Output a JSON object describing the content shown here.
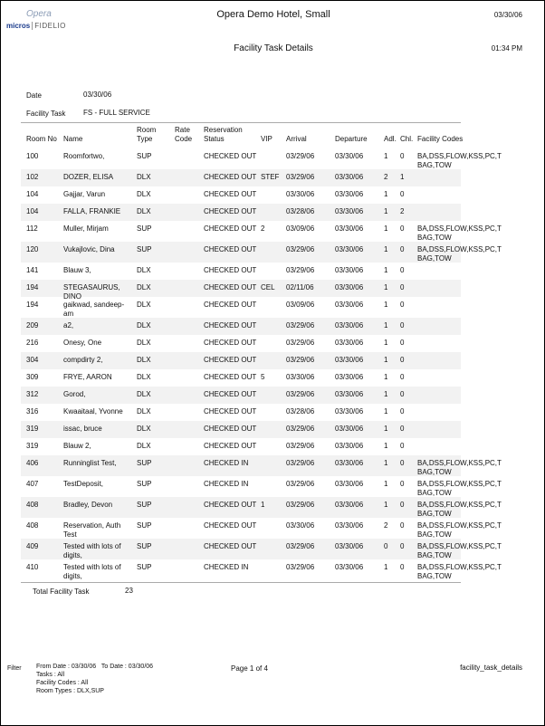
{
  "header": {
    "logo_top": "Opera",
    "logo_bottom_left": "micros",
    "logo_bottom_right": "FIDELIO",
    "hotel": "Opera Demo Hotel, Small",
    "date": "03/30/06",
    "title": "Facility Task Details",
    "time": "01:34 PM"
  },
  "params": {
    "date_label": "Date",
    "date_value": "03/30/06",
    "task_label": "Facility Task",
    "task_value": "FS - FULL SERVICE"
  },
  "columns": {
    "room_no": "Room No",
    "name": "Name",
    "room_type": "Room Type",
    "rate_code": "Rate Code",
    "res_status": "Reservation Status",
    "vip": "VIP",
    "arrival": "Arrival",
    "departure": "Departure",
    "adl": "Adl.",
    "chl": "Chl.",
    "codes": "Facility Codes"
  },
  "rows": [
    {
      "room": "100",
      "name": "Roomfortwo,",
      "type": "SUP",
      "rate": "",
      "status": "CHECKED OUT",
      "vip": "",
      "arr": "03/29/06",
      "dep": "03/30/06",
      "adl": "1",
      "chl": "0",
      "codes": "BA,DSS,FLOW,KSS,PC,T BAG,TOW"
    },
    {
      "room": "102",
      "name": "DOZER, ELISA",
      "type": "DLX",
      "rate": "",
      "status": "CHECKED OUT",
      "vip": "STEF",
      "arr": "03/29/06",
      "dep": "03/30/06",
      "adl": "2",
      "chl": "1",
      "codes": ""
    },
    {
      "room": "104",
      "name": "Gajjar, Varun",
      "type": "DLX",
      "rate": "",
      "status": "CHECKED OUT",
      "vip": "",
      "arr": "03/30/06",
      "dep": "03/30/06",
      "adl": "1",
      "chl": "0",
      "codes": ""
    },
    {
      "room": "104",
      "name": "FALLA, FRANKIE",
      "type": "DLX",
      "rate": "",
      "status": "CHECKED OUT",
      "vip": "",
      "arr": "03/28/06",
      "dep": "03/30/06",
      "adl": "1",
      "chl": "2",
      "codes": ""
    },
    {
      "room": "112",
      "name": "Muller, Mirjam",
      "type": "SUP",
      "rate": "",
      "status": "CHECKED OUT",
      "vip": "2",
      "arr": "03/09/06",
      "dep": "03/30/06",
      "adl": "1",
      "chl": "0",
      "codes": "BA,DSS,FLOW,KSS,PC,T BAG,TOW"
    },
    {
      "room": "120",
      "name": "Vukajlovic, Dina",
      "type": "SUP",
      "rate": "",
      "status": "CHECKED OUT",
      "vip": "",
      "arr": "03/29/06",
      "dep": "03/30/06",
      "adl": "1",
      "chl": "0",
      "codes": "BA,DSS,FLOW,KSS,PC,T BAG,TOW"
    },
    {
      "room": "141",
      "name": "Blauw 3,",
      "type": "DLX",
      "rate": "",
      "status": "CHECKED OUT",
      "vip": "",
      "arr": "03/29/06",
      "dep": "03/30/06",
      "adl": "1",
      "chl": "0",
      "codes": ""
    },
    {
      "room": "194",
      "name": "STEGASAURUS, DINO",
      "type": "DLX",
      "rate": "",
      "status": "CHECKED OUT",
      "vip": "CEL",
      "arr": "02/11/06",
      "dep": "03/30/06",
      "adl": "1",
      "chl": "0",
      "codes": ""
    },
    {
      "room": "194",
      "name": "gaikwad, sandeep-am",
      "type": "DLX",
      "rate": "",
      "status": "CHECKED OUT",
      "vip": "",
      "arr": "03/09/06",
      "dep": "03/30/06",
      "adl": "1",
      "chl": "0",
      "codes": ""
    },
    {
      "room": "209",
      "name": "a2,",
      "type": "DLX",
      "rate": "",
      "status": "CHECKED OUT",
      "vip": "",
      "arr": "03/29/06",
      "dep": "03/30/06",
      "adl": "1",
      "chl": "0",
      "codes": ""
    },
    {
      "room": "216",
      "name": "Onesy, One",
      "type": "DLX",
      "rate": "",
      "status": "CHECKED OUT",
      "vip": "",
      "arr": "03/29/06",
      "dep": "03/30/06",
      "adl": "1",
      "chl": "0",
      "codes": ""
    },
    {
      "room": "304",
      "name": "compdirty 2,",
      "type": "DLX",
      "rate": "",
      "status": "CHECKED OUT",
      "vip": "",
      "arr": "03/29/06",
      "dep": "03/30/06",
      "adl": "1",
      "chl": "0",
      "codes": ""
    },
    {
      "room": "309",
      "name": "FRYE, AARON",
      "type": "DLX",
      "rate": "",
      "status": "CHECKED OUT",
      "vip": "5",
      "arr": "03/30/06",
      "dep": "03/30/06",
      "adl": "1",
      "chl": "0",
      "codes": ""
    },
    {
      "room": "312",
      "name": "Gorod,",
      "type": "DLX",
      "rate": "",
      "status": "CHECKED OUT",
      "vip": "",
      "arr": "03/29/06",
      "dep": "03/30/06",
      "adl": "1",
      "chl": "0",
      "codes": ""
    },
    {
      "room": "316",
      "name": "Kwaaitaal, Yvonne",
      "type": "DLX",
      "rate": "",
      "status": "CHECKED OUT",
      "vip": "",
      "arr": "03/28/06",
      "dep": "03/30/06",
      "adl": "1",
      "chl": "0",
      "codes": ""
    },
    {
      "room": "319",
      "name": "issac, bruce",
      "type": "DLX",
      "rate": "",
      "status": "CHECKED OUT",
      "vip": "",
      "arr": "03/29/06",
      "dep": "03/30/06",
      "adl": "1",
      "chl": "0",
      "codes": ""
    },
    {
      "room": "319",
      "name": "Blauw 2,",
      "type": "DLX",
      "rate": "",
      "status": "CHECKED OUT",
      "vip": "",
      "arr": "03/29/06",
      "dep": "03/30/06",
      "adl": "1",
      "chl": "0",
      "codes": ""
    },
    {
      "room": "406",
      "name": "Runninglist Test,",
      "type": "SUP",
      "rate": "",
      "status": "CHECKED IN",
      "vip": "",
      "arr": "03/29/06",
      "dep": "03/30/06",
      "adl": "1",
      "chl": "0",
      "codes": "BA,DSS,FLOW,KSS,PC,T BAG,TOW"
    },
    {
      "room": "407",
      "name": "TestDeposit,",
      "type": "SUP",
      "rate": "",
      "status": "CHECKED IN",
      "vip": "",
      "arr": "03/29/06",
      "dep": "03/30/06",
      "adl": "1",
      "chl": "0",
      "codes": "BA,DSS,FLOW,KSS,PC,T BAG,TOW"
    },
    {
      "room": "408",
      "name": "Bradley, Devon",
      "type": "SUP",
      "rate": "",
      "status": "CHECKED OUT",
      "vip": "1",
      "arr": "03/29/06",
      "dep": "03/30/06",
      "adl": "1",
      "chl": "0",
      "codes": "BA,DSS,FLOW,KSS,PC,T BAG,TOW"
    },
    {
      "room": "408",
      "name": "Reservation, Auth Test",
      "type": "SUP",
      "rate": "",
      "status": "CHECKED OUT",
      "vip": "",
      "arr": "03/30/06",
      "dep": "03/30/06",
      "adl": "2",
      "chl": "0",
      "codes": "BA,DSS,FLOW,KSS,PC,T BAG,TOW"
    },
    {
      "room": "409",
      "name": "Tested with lots of digits,",
      "type": "SUP",
      "rate": "",
      "status": "CHECKED OUT",
      "vip": "",
      "arr": "03/29/06",
      "dep": "03/30/06",
      "adl": "0",
      "chl": "0",
      "codes": "BA,DSS,FLOW,KSS,PC,T BAG,TOW"
    },
    {
      "room": "410",
      "name": "Tested with lots of digits,",
      "type": "SUP",
      "rate": "",
      "status": "CHECKED IN",
      "vip": "",
      "arr": "03/29/06",
      "dep": "03/30/06",
      "adl": "1",
      "chl": "0",
      "codes": "BA,DSS,FLOW,KSS,PC,T BAG,TOW"
    }
  ],
  "total": {
    "label": "Total Facility Task",
    "value": "23"
  },
  "footer": {
    "filter_label": "Filter",
    "line1": "From Date : 03/30/06   To Date : 03/30/06",
    "line2": "Tasks : All",
    "line3": "Facility Codes : All",
    "line4": "Room Types : DLX,SUP",
    "page": "Page 1 of 4",
    "report_name": "facility_task_details"
  },
  "colors": {
    "row_shade": "#f2f2f2",
    "rule": "#aaaaaa",
    "logo_blue": "#1a3b8c"
  }
}
